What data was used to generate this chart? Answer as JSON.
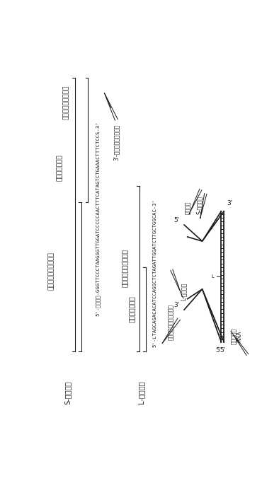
{
  "bg_color": "#ffffff",
  "line_color": "#1a1a1a",
  "s_probe_label": "S-プローブ",
  "l_probe_label": "L-プローブ",
  "s_seq": "5'-ビオチン-GGGTTCCCTAAGGGTTGGATCCCCCAACTTTCATAGTCTGAAACTTTCTCCS-3'",
  "s_annot": "3'-ホスホロチオエート",
  "s_r1": "ユニバーサルプライマ",
  "s_r2": "スタッファ配列",
  "s_r3": "ターゲット結合配列",
  "l_seq": "5'-LTAGCAGACACATCCAGGCTCTAGATTGGATCTTGCTGGCAC-3'",
  "l_annot": "化学ライゲーション部分",
  "l_r1": "ユニバーサルプライマ",
  "l_r2": "ターゲット結合",
  "biotin_label": "ビオチン",
  "s_probe_diag_label": "S-プローブ",
  "l_probe_diag_label": "L-プローブ",
  "target_label": "ターゲット\nRNA",
  "five_prime": "5'",
  "three_prime": "3'"
}
